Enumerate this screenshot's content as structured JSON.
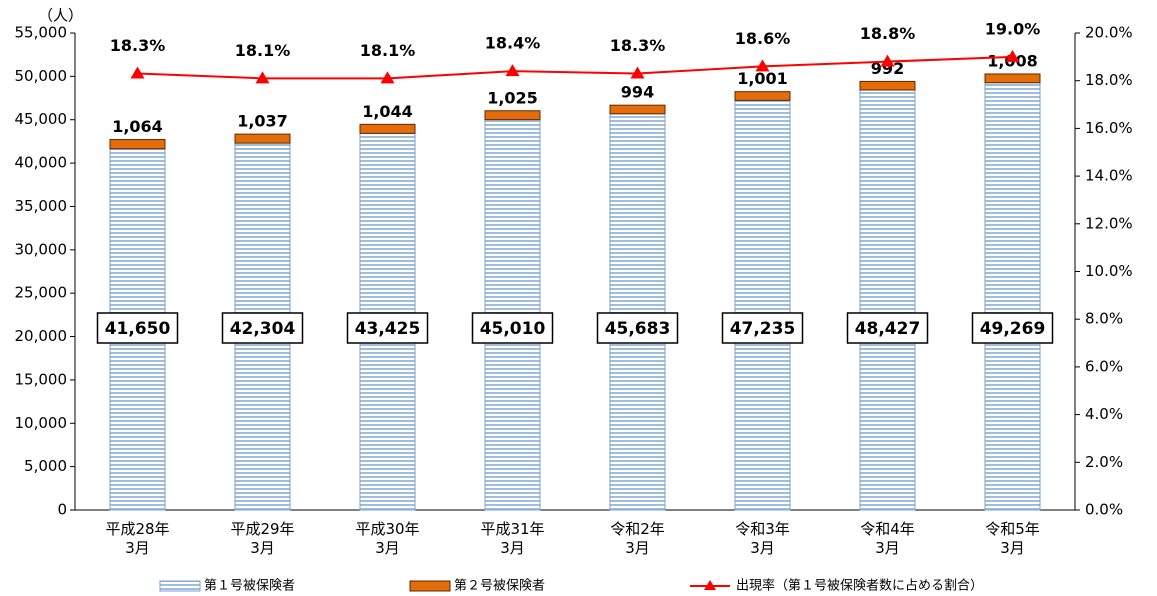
{
  "chart_data": {
    "type": "bar",
    "y_label": "（人）",
    "categories": [
      "平成28年\n3月",
      "平成29年\n3月",
      "平成30年\n3月",
      "平成31年\n3月",
      "令和2年\n3月",
      "令和3年\n3月",
      "令和4年\n3月",
      "令和5年\n3月"
    ],
    "series": [
      {
        "name": "第１号被保険者",
        "color": "#b8cde6",
        "type": "bar",
        "values": [
          41650,
          42304,
          43425,
          45010,
          45683,
          47235,
          48427,
          49269
        ],
        "value_labels": [
          "41,650",
          "42,304",
          "43,425",
          "45,010",
          "45,683",
          "47,235",
          "48,427",
          "49,269"
        ]
      },
      {
        "name": "第２号被保険者",
        "color": "#e46c0a",
        "type": "bar",
        "values": [
          1064,
          1037,
          1044,
          1025,
          994,
          1001,
          992,
          1008
        ],
        "value_labels": [
          "1,064",
          "1,037",
          "1,044",
          "1,025",
          "994",
          "1,001",
          "992",
          "1,008"
        ]
      },
      {
        "name": "出現率（第１号被保険者数に占める割合）",
        "color": "#ff0000",
        "type": "line",
        "axis": "y2",
        "values": [
          18.3,
          18.1,
          18.1,
          18.4,
          18.3,
          18.6,
          18.8,
          19.0
        ],
        "value_labels": [
          "18.3%",
          "18.1%",
          "18.1%",
          "18.4%",
          "18.3%",
          "18.6%",
          "18.8%",
          "19.0%"
        ]
      }
    ],
    "stacked": true,
    "ylim": [
      0,
      55000
    ],
    "yticks": [
      0,
      {
        "value": 5000,
        "label": "5,000"
      },
      {
        "value": 10000,
        "label": "10,000"
      },
      {
        "value": 15000,
        "label": "15,000"
      },
      {
        "value": 20000,
        "label": "20,000"
      },
      {
        "value": 25000,
        "label": "25,000"
      },
      {
        "value": 30000,
        "label": "30,000"
      },
      {
        "value": 35000,
        "label": "35,000"
      },
      {
        "value": 40000,
        "label": "40,000"
      },
      {
        "value": 45000,
        "label": "45,000"
      },
      {
        "value": 50000,
        "label": "50,000"
      },
      {
        "value": 55000,
        "label": "55,000"
      }
    ],
    "y2lim": [
      0,
      20
    ],
    "y2ticks": [
      {
        "value": 0,
        "label": "0.0%"
      },
      {
        "value": 2,
        "label": "2.0%"
      },
      {
        "value": 4,
        "label": "4.0%"
      },
      {
        "value": 6,
        "label": "6.0%"
      },
      {
        "value": 8,
        "label": "8.0%"
      },
      {
        "value": 10,
        "label": "10.0%"
      },
      {
        "value": 12,
        "label": "12.0%"
      },
      {
        "value": 14,
        "label": "14.0%"
      },
      {
        "value": 16,
        "label": "16.0%"
      },
      {
        "value": 18,
        "label": "18.0%"
      },
      {
        "value": 20,
        "label": "20.0%"
      }
    ],
    "legend": "bottom"
  }
}
